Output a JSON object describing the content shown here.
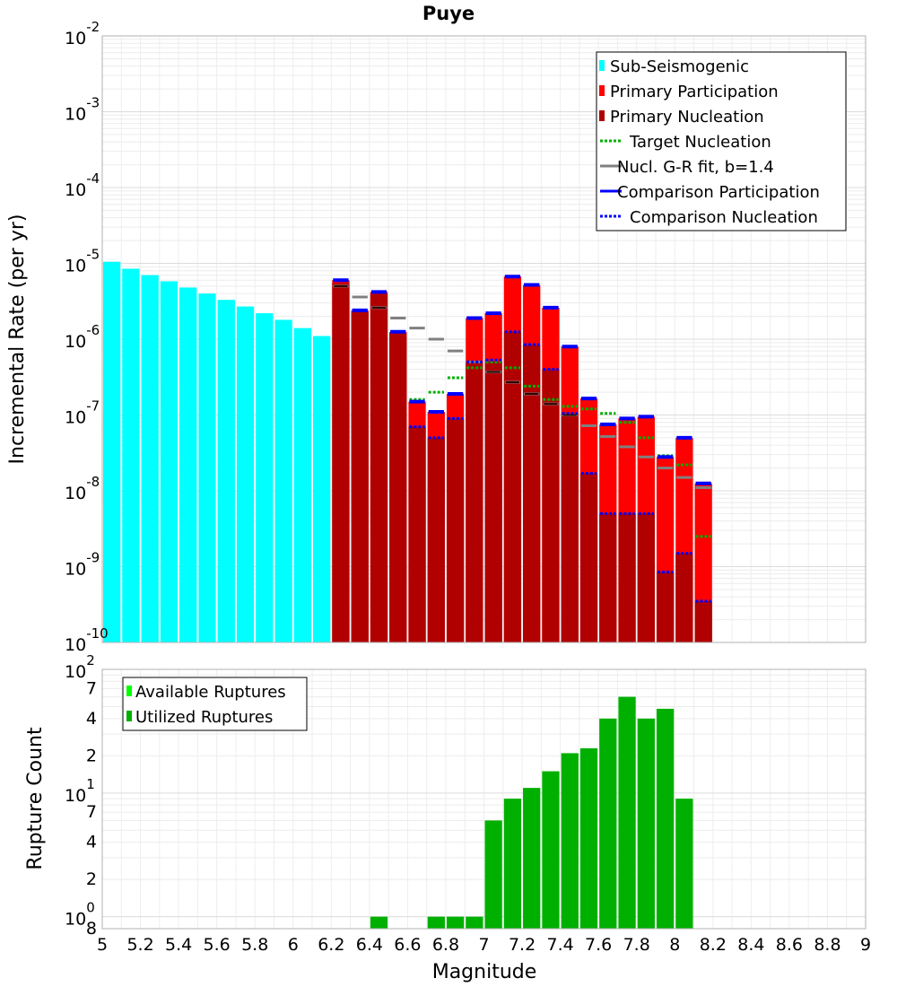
{
  "chart_data": [
    {
      "type": "bar",
      "title": "Puye",
      "xlabel": "",
      "ylabel": "Incremental Rate (per yr)",
      "yscale": "log",
      "xlim": [
        5,
        9
      ],
      "ylim": [
        1e-10,
        0.01
      ],
      "y_ticks": [
        {
          "base": "10",
          "exp": "-2"
        },
        {
          "base": "10",
          "exp": "-3"
        },
        {
          "base": "10",
          "exp": "-4"
        },
        {
          "base": "10",
          "exp": "-5"
        },
        {
          "base": "10",
          "exp": "-6"
        },
        {
          "base": "10",
          "exp": "-7"
        },
        {
          "base": "10",
          "exp": "-8"
        },
        {
          "base": "10",
          "exp": "-9"
        },
        {
          "base": "10",
          "exp": "-10"
        }
      ],
      "legend": {
        "position": "top-right",
        "entries": [
          {
            "label": "Sub-Seismogenic",
            "color": "#00ffff",
            "style": "bar"
          },
          {
            "label": "Primary Participation",
            "color": "#ff0000",
            "style": "bar"
          },
          {
            "label": "Primary Nucleation",
            "color": "#b00000",
            "style": "bar"
          },
          {
            "label": "Target Nucleation",
            "color": "#00b000",
            "style": "dotted"
          },
          {
            "label": "Nucl. G-R fit, b=1.4",
            "color": "#808080",
            "style": "solid"
          },
          {
            "label": "Comparison Participation",
            "color": "#0000ff",
            "style": "solid"
          },
          {
            "label": "Comparison Nucleation",
            "color": "#0000ff",
            "style": "dotted"
          }
        ]
      },
      "sub_seismogenic": {
        "x": [
          5.05,
          5.15,
          5.25,
          5.35,
          5.45,
          5.55,
          5.65,
          5.75,
          5.85,
          5.95,
          6.05,
          6.15
        ],
        "values": [
          1.05e-05,
          8.5e-06,
          7e-06,
          5.8e-06,
          4.8e-06,
          4e-06,
          3.3e-06,
          2.7e-06,
          2.2e-06,
          1.8e-06,
          1.4e-06,
          1.1e-06
        ]
      },
      "series": [
        {
          "name": "Primary Participation",
          "x": [
            6.25,
            6.35,
            6.45,
            6.55,
            6.65,
            6.75,
            6.85,
            6.95,
            7.05,
            7.15,
            7.25,
            7.35,
            7.45,
            7.55,
            7.65,
            7.75,
            7.85,
            7.95,
            8.05,
            8.15
          ],
          "values": [
            6e-06,
            2.4e-06,
            4.2e-06,
            1.25e-06,
            1.5e-07,
            1.1e-07,
            1.9e-07,
            1.9e-06,
            2.2e-06,
            6.7e-06,
            5.2e-06,
            2.6e-06,
            8e-07,
            1.65e-07,
            7.5e-08,
            9e-08,
            9.5e-08,
            2.8e-08,
            5e-08,
            1.25e-08
          ]
        },
        {
          "name": "Primary Nucleation",
          "x": [
            6.25,
            6.35,
            6.45,
            6.55,
            6.65,
            6.75,
            6.85,
            6.95,
            7.05,
            7.15,
            7.25,
            7.35,
            7.45,
            7.55,
            7.65,
            7.75,
            7.85,
            7.95,
            8.05,
            8.15
          ],
          "values": [
            5.5e-06,
            2.3e-06,
            4e-06,
            1.2e-06,
            7e-08,
            5e-08,
            9e-08,
            5e-07,
            5e-07,
            1.25e-06,
            8.5e-07,
            4e-07,
            1.05e-07,
            1.7e-08,
            5e-09,
            5e-09,
            5e-09,
            8.5e-10,
            1.5e-09,
            3.5e-10
          ]
        },
        {
          "name": "Target Nucleation",
          "x": [
            6.65,
            6.75,
            6.85,
            6.95,
            7.05,
            7.15,
            7.25,
            7.35,
            7.45,
            7.55,
            7.65,
            7.75,
            7.85,
            7.95,
            8.05,
            8.15
          ],
          "values": [
            1.6e-07,
            2e-07,
            3.1e-07,
            4.2e-07,
            5e-07,
            4.2e-07,
            2.4e-07,
            1.6e-07,
            1.3e-07,
            1.2e-07,
            1.05e-07,
            8e-08,
            5e-08,
            2.9e-08,
            2.2e-08,
            2.5e-09
          ]
        },
        {
          "name": "Nucl. G-R fit, b=1.4",
          "x": [
            6.25,
            6.35,
            6.45,
            6.55,
            6.65,
            6.75,
            6.85,
            6.95,
            7.05,
            7.15,
            7.25,
            7.35,
            7.45,
            7.55,
            7.65,
            7.75,
            7.85,
            7.95,
            8.05,
            8.15
          ],
          "values": [
            5e-06,
            3.6e-06,
            2.6e-06,
            1.9e-06,
            1.4e-06,
            1e-06,
            7e-07,
            5e-07,
            3.7e-07,
            2.7e-07,
            1.9e-07,
            1.4e-07,
            1e-07,
            7.2e-08,
            5.2e-08,
            3.8e-08,
            2.8e-08,
            2e-08,
            1.5e-08,
            1.1e-08
          ]
        },
        {
          "name": "Comparison Participation",
          "x": [
            6.25,
            6.35,
            6.45,
            6.55,
            6.65,
            6.75,
            6.85,
            6.95,
            7.05,
            7.15,
            7.25,
            7.35,
            7.45,
            7.55,
            7.65,
            7.75,
            7.85,
            7.95,
            8.05,
            8.15
          ],
          "values": [
            6e-06,
            2.4e-06,
            4.2e-06,
            1.25e-06,
            1.5e-07,
            1.1e-07,
            1.9e-07,
            1.9e-06,
            2.2e-06,
            6.7e-06,
            5.2e-06,
            2.6e-06,
            8e-07,
            1.65e-07,
            7.5e-08,
            9e-08,
            9.5e-08,
            2.8e-08,
            5e-08,
            1.25e-08
          ]
        },
        {
          "name": "Comparison Nucleation",
          "x": [
            6.65,
            6.75,
            6.85,
            6.95,
            7.05,
            7.15,
            7.25,
            7.35,
            7.45,
            7.55,
            7.65,
            7.75,
            7.85,
            7.95,
            8.05,
            8.15
          ],
          "values": [
            7e-08,
            5e-08,
            9e-08,
            5e-07,
            5.3e-07,
            1.25e-06,
            8.5e-07,
            4e-07,
            1.05e-07,
            1.7e-08,
            5e-09,
            5e-09,
            5e-09,
            8.5e-10,
            1.5e-09,
            3.5e-10
          ]
        }
      ]
    },
    {
      "type": "bar",
      "title": "",
      "xlabel": "Magnitude",
      "ylabel": "Rupture Count",
      "yscale": "log",
      "xlim": [
        5,
        9
      ],
      "ylim": [
        0.8,
        100
      ],
      "x_ticks": [
        "5",
        "5.2",
        "5.4",
        "5.6",
        "5.8",
        "6",
        "6.2",
        "6.4",
        "6.6",
        "6.8",
        "7",
        "7.2",
        "7.4",
        "7.6",
        "7.8",
        "8",
        "8.2",
        "8.4",
        "8.6",
        "8.8",
        "9"
      ],
      "y_major_ticks": [
        {
          "base": "10",
          "exp": "2"
        },
        {
          "base": "10",
          "exp": "1"
        },
        {
          "base": "10",
          "exp": "0"
        }
      ],
      "y_minor_labels": [
        "7",
        "4",
        "2",
        "7",
        "4",
        "2",
        "8"
      ],
      "legend": {
        "position": "top-left",
        "entries": [
          {
            "label": "Available Ruptures",
            "color": "#00ff00",
            "style": "bar"
          },
          {
            "label": "Utilized Ruptures",
            "color": "#00b000",
            "style": "bar"
          }
        ]
      },
      "series": [
        {
          "name": "Utilized Ruptures",
          "x": [
            6.45,
            6.75,
            6.85,
            6.95,
            7.05,
            7.15,
            7.25,
            7.35,
            7.45,
            7.55,
            7.65,
            7.75,
            7.85,
            7.95,
            8.05
          ],
          "values": [
            1,
            1,
            1,
            1,
            6,
            9,
            11,
            15,
            21,
            23,
            40,
            60,
            40,
            48,
            9
          ]
        }
      ]
    }
  ]
}
